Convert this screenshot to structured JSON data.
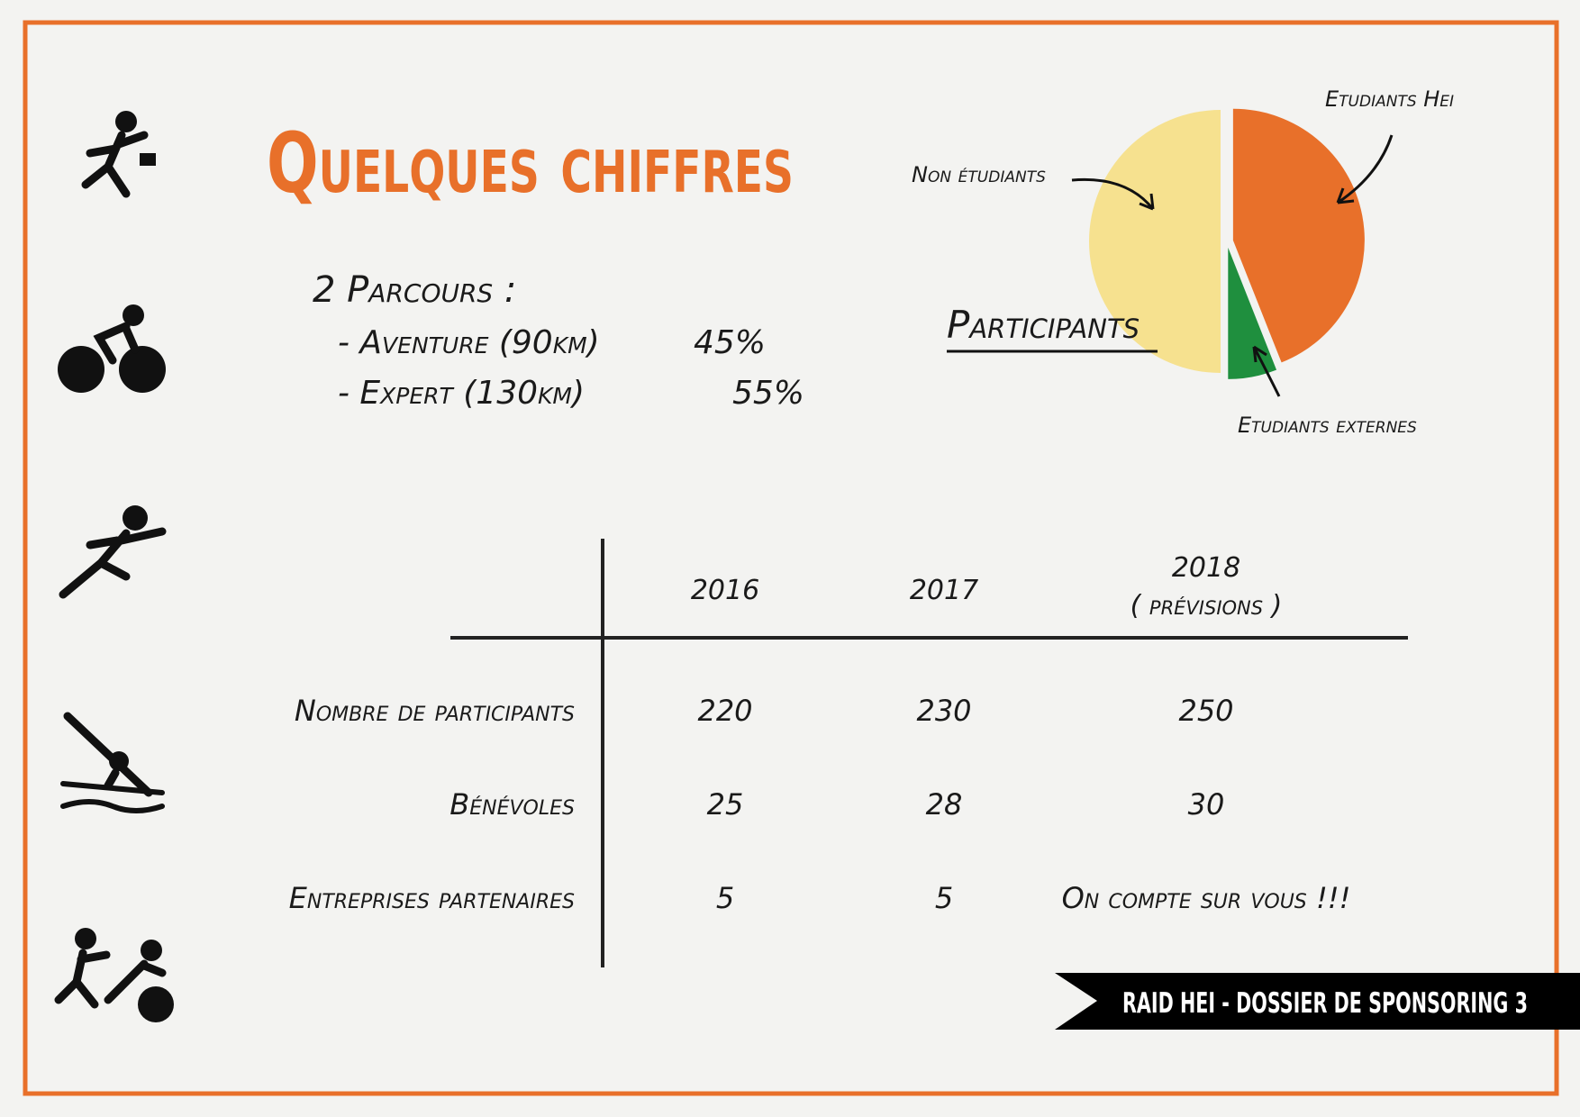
{
  "header": {
    "title": "Quelques chiffres"
  },
  "parcours": {
    "heading": "2 Parcours :",
    "items": [
      {
        "name": "- Aventure (90km)",
        "share": "45%"
      },
      {
        "name": "- Expert (130km)",
        "share": "55%"
      }
    ]
  },
  "chart_data": {
    "type": "pie",
    "title": "Participants",
    "categories": [
      "Etudiants Hei",
      "Etudiants externes",
      "Non étudiants"
    ],
    "values": [
      44,
      6,
      50
    ],
    "colors": [
      "#e8702a",
      "#1f8f3e",
      "#f6e18f"
    ]
  },
  "table": {
    "columns": [
      {
        "year": "2016"
      },
      {
        "year": "2017"
      },
      {
        "year": "2018",
        "note": "( prévisions )"
      }
    ],
    "rows": [
      {
        "label": "Nombre de participants",
        "values": [
          "220",
          "230",
          "250"
        ]
      },
      {
        "label": "Bénévoles",
        "values": [
          "25",
          "28",
          "30"
        ]
      },
      {
        "label": "Entreprises partenaires",
        "values": [
          "5",
          "5",
          "On compte sur vous !!!"
        ]
      }
    ]
  },
  "footer": {
    "text": "RAID HEI - DOSSIER DE SPONSORING 3"
  }
}
